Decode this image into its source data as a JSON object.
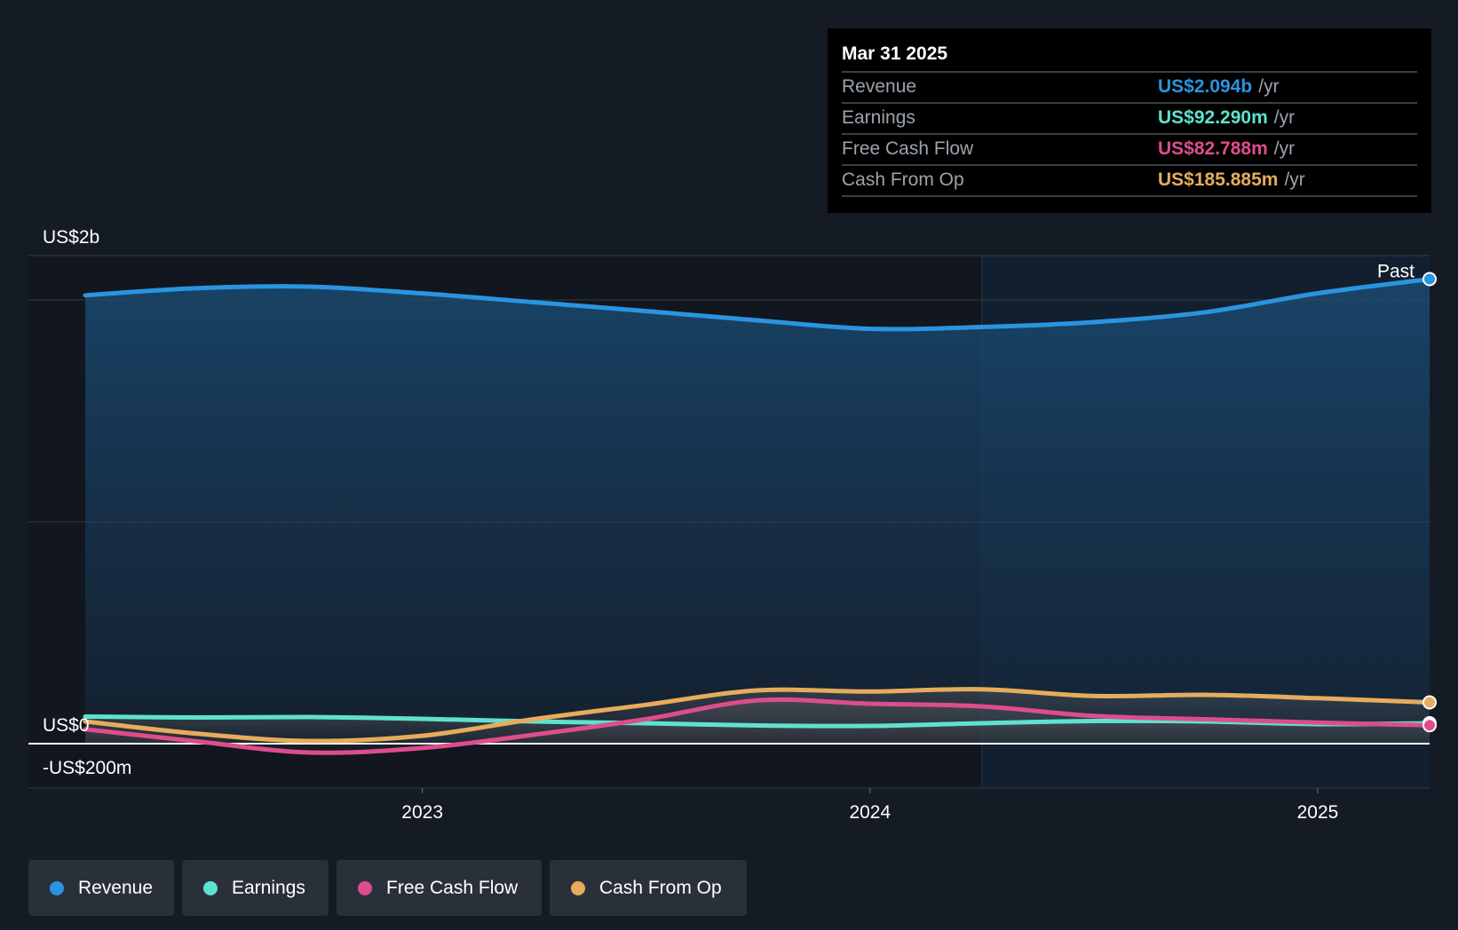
{
  "tooltip": {
    "date": "Mar 31 2025",
    "rows": [
      {
        "label": "Revenue",
        "value": "US$2.094b",
        "unit": "/yr",
        "color": "#2a94e0"
      },
      {
        "label": "Earnings",
        "value": "US$92.290m",
        "unit": "/yr",
        "color": "#5ee2cf"
      },
      {
        "label": "Free Cash Flow",
        "value": "US$82.788m",
        "unit": "/yr",
        "color": "#dd4d8d"
      },
      {
        "label": "Cash From Op",
        "value": "US$185.885m",
        "unit": "/yr",
        "color": "#e6ac5c"
      }
    ]
  },
  "legend": [
    {
      "label": "Revenue",
      "color": "#2a94e0"
    },
    {
      "label": "Earnings",
      "color": "#5ee2cf"
    },
    {
      "label": "Free Cash Flow",
      "color": "#dd4d8d"
    },
    {
      "label": "Cash From Op",
      "color": "#e6ac5c"
    }
  ],
  "chart_data": {
    "type": "line",
    "y_tick_labels": [
      "US$2b",
      "US$0",
      "-US$200m"
    ],
    "x_tick_labels": [
      "2023",
      "2024",
      "2025"
    ],
    "past_label": "Past",
    "ylim": [
      -200,
      2200
    ],
    "y_ticks": [
      2200,
      2000,
      1000,
      0,
      -200
    ],
    "x_ticks": [
      2023,
      2024,
      2025
    ],
    "xlim": [
      2022.12,
      2025.25
    ],
    "past_start": 2024.25,
    "legend_position": "bottom",
    "grid": true,
    "series": [
      {
        "name": "Revenue",
        "color": "#2a94e0",
        "x": [
          2022.25,
          2022.5,
          2022.75,
          2023.0,
          2023.25,
          2023.5,
          2023.75,
          2024.0,
          2024.25,
          2024.5,
          2024.75,
          2025.0,
          2025.25
        ],
        "y": [
          2021,
          2053,
          2060,
          2030,
          1990,
          1950,
          1908,
          1870,
          1878,
          1900,
          1945,
          2030,
          2094
        ]
      },
      {
        "name": "Earnings",
        "color": "#5ee2cf",
        "x": [
          2022.25,
          2022.5,
          2022.75,
          2023.0,
          2023.25,
          2023.5,
          2023.75,
          2024.0,
          2024.25,
          2024.5,
          2024.75,
          2025.0,
          2025.25
        ],
        "y": [
          122,
          118,
          120,
          112,
          100,
          92,
          82,
          80,
          92,
          102,
          100,
          88,
          92
        ]
      },
      {
        "name": "Free Cash Flow",
        "color": "#dd4d8d",
        "x": [
          2022.25,
          2022.5,
          2022.75,
          2023.0,
          2023.25,
          2023.5,
          2023.75,
          2024.0,
          2024.25,
          2024.5,
          2024.75,
          2025.0,
          2025.25
        ],
        "y": [
          65,
          10,
          -40,
          -20,
          40,
          110,
          195,
          180,
          168,
          125,
          110,
          95,
          83
        ]
      },
      {
        "name": "Cash From Op",
        "color": "#e6ac5c",
        "x": [
          2022.25,
          2022.5,
          2022.75,
          2023.0,
          2023.25,
          2023.5,
          2023.75,
          2024.0,
          2024.25,
          2024.5,
          2024.75,
          2025.0,
          2025.25
        ],
        "y": [
          100,
          45,
          12,
          35,
          110,
          175,
          240,
          235,
          245,
          215,
          220,
          205,
          186
        ]
      }
    ]
  }
}
